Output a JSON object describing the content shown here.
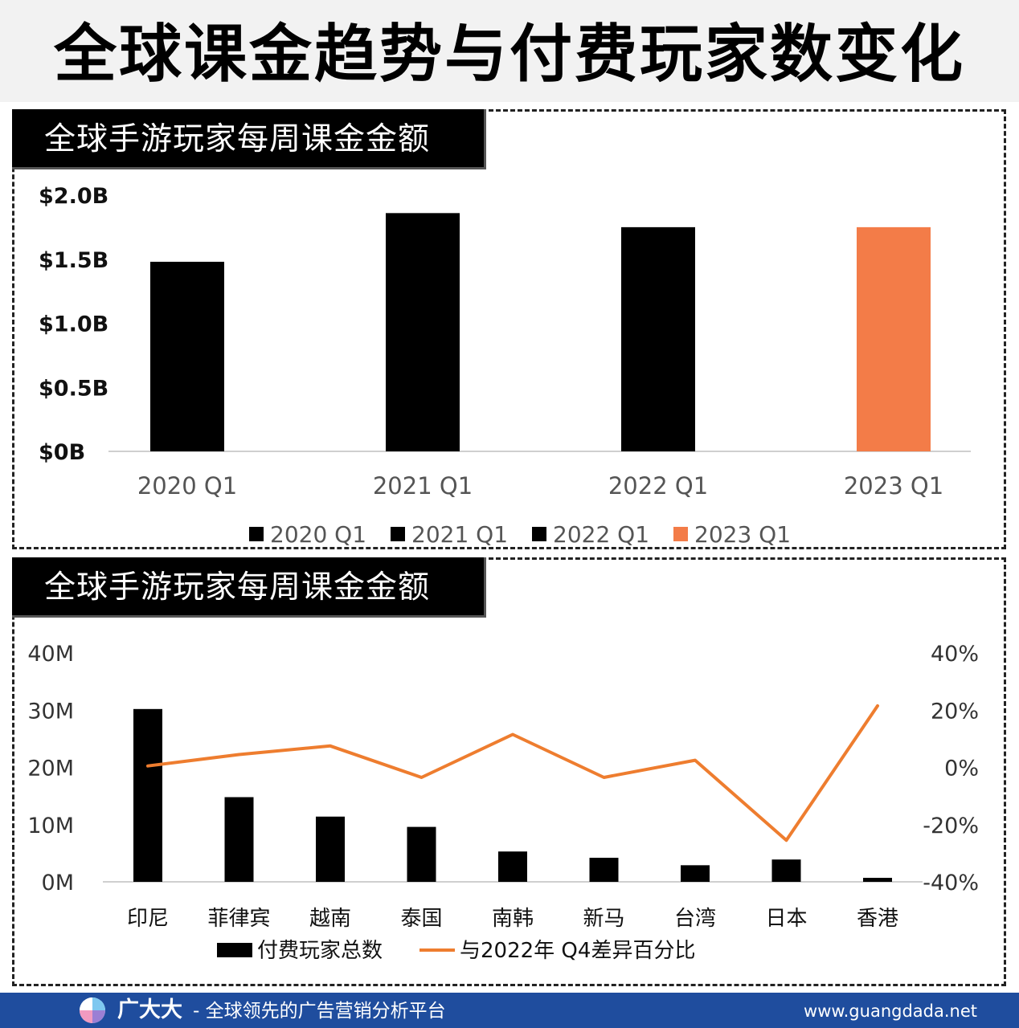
{
  "header": {
    "title": "全球课金趋势与付费玩家数变化"
  },
  "footer": {
    "brand": "广大大",
    "tagline": "- 全球领先的广告营销分析平台",
    "site": "www.guangdada.net"
  },
  "colors": {
    "bar": "#000000",
    "highlight": "#f37c48",
    "line": "#ee7d2f",
    "footer": "#1f4d9e"
  },
  "chart_data": [
    {
      "type": "bar",
      "title": "全球手游玩家每周课金金额",
      "categories": [
        "2020 Q1",
        "2021 Q1",
        "2022 Q1",
        "2023 Q1"
      ],
      "values": [
        1.48,
        1.86,
        1.75,
        1.75
      ],
      "unit": "B",
      "ylim": [
        0,
        2.0
      ],
      "yticks": [
        {
          "value": 0,
          "label": "$0B"
        },
        {
          "value": 0.5,
          "label": "$0.5B"
        },
        {
          "value": 1.0,
          "label": "$1.0B"
        },
        {
          "value": 1.5,
          "label": "$1.5B"
        },
        {
          "value": 2.0,
          "label": "$2.0B"
        }
      ],
      "highlight_index": 3,
      "grid": false,
      "legend": {
        "position": "bottom",
        "entries": [
          "2020 Q1",
          "2021 Q1",
          "2022 Q1",
          "2023 Q1"
        ]
      }
    },
    {
      "type": "bar+line",
      "title": "全球手游玩家每周课金金额",
      "categories": [
        "印尼",
        "菲律宾",
        "越南",
        "泰国",
        "南韩",
        "新马",
        "台湾",
        "日本",
        "香港"
      ],
      "series": [
        {
          "name": "付费玩家总数",
          "type": "bar",
          "axis": "left",
          "values": [
            30.2,
            14.8,
            11.4,
            9.6,
            5.3,
            4.2,
            2.9,
            3.9,
            0.7
          ],
          "unit": "M"
        },
        {
          "name": "与2022年 Q4差异百分比",
          "type": "line",
          "axis": "right",
          "values": [
            0.5,
            4.5,
            7.5,
            -3.5,
            11.5,
            -3.5,
            2.5,
            -25.5,
            21.5
          ],
          "unit": "%"
        }
      ],
      "y_left": {
        "ylim": [
          0,
          40
        ],
        "ticks": [
          "0M",
          "10M",
          "20M",
          "30M",
          "40M"
        ]
      },
      "y_right": {
        "ylim": [
          -40,
          40
        ],
        "ticks": [
          "-40%",
          "-20%",
          "0%",
          "20%",
          "40%"
        ]
      },
      "grid": false,
      "legend": {
        "position": "bottom"
      }
    }
  ]
}
